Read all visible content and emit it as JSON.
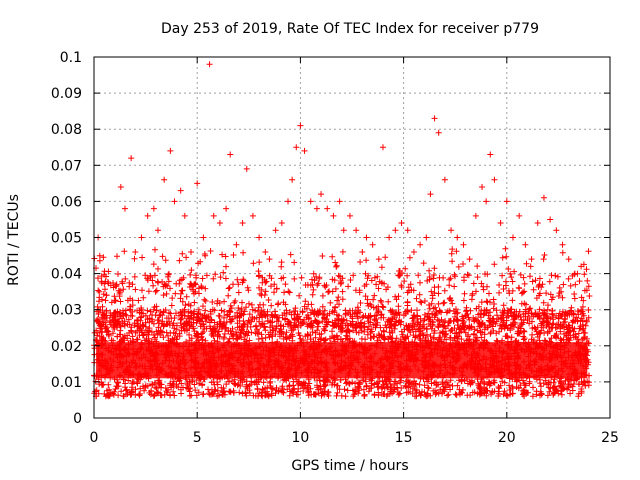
{
  "chart_data": {
    "type": "scatter",
    "title": "Day 253 of 2019, Rate Of TEC Index for receiver p779",
    "xlabel": "GPS time / hours",
    "ylabel": "ROTI / TECUs",
    "xlim": [
      0,
      25
    ],
    "ylim": [
      0,
      0.1
    ],
    "x_ticks": [
      "0",
      "5",
      "10",
      "15",
      "20",
      "25"
    ],
    "y_ticks": [
      "0",
      "0.01",
      "0.02",
      "0.03",
      "0.04",
      "0.05",
      "0.06",
      "0.07",
      "0.08",
      "0.09",
      "0.1"
    ],
    "grid": true,
    "marker": "plus",
    "color": "#ff0000",
    "point_density": "dense band between 0.005 and 0.035 across 0 to 24 hours",
    "series": [
      {
        "x": [
          0.2,
          0.6,
          1.1,
          1.3,
          1.5,
          1.8,
          2.0,
          2.3,
          2.6,
          2.9,
          3.1,
          3.4,
          3.7,
          3.9,
          4.2,
          4.4,
          4.7,
          5.0,
          5.3,
          5.6,
          5.8,
          6.1,
          6.4,
          6.6,
          6.9,
          7.2,
          7.4,
          7.7,
          8.0,
          8.3,
          8.5,
          8.8,
          9.1,
          9.4,
          9.6,
          9.8,
          10.0,
          10.2,
          10.5,
          10.8,
          11.0,
          11.3,
          11.6,
          11.9,
          12.1,
          12.4,
          12.7,
          13.0,
          13.2,
          13.5,
          13.8,
          14.0,
          14.3,
          14.6,
          14.9,
          15.2,
          15.5,
          15.8,
          16.1,
          16.3,
          16.5,
          16.7,
          17.0,
          17.3,
          17.6,
          17.9,
          18.2,
          18.5,
          18.8,
          19.0,
          19.2,
          19.4,
          19.7,
          20.0,
          20.3,
          20.6,
          20.9,
          21.2,
          21.5,
          21.8,
          22.1,
          22.4,
          22.7,
          23.0,
          23.3,
          23.6,
          23.9
        ],
        "y": [
          0.05,
          0.034,
          0.037,
          0.064,
          0.058,
          0.072,
          0.046,
          0.05,
          0.056,
          0.058,
          0.052,
          0.066,
          0.074,
          0.06,
          0.063,
          0.056,
          0.046,
          0.065,
          0.05,
          0.098,
          0.056,
          0.054,
          0.058,
          0.073,
          0.048,
          0.054,
          0.069,
          0.056,
          0.05,
          0.046,
          0.044,
          0.052,
          0.054,
          0.06,
          0.066,
          0.075,
          0.081,
          0.074,
          0.06,
          0.058,
          0.062,
          0.058,
          0.056,
          0.06,
          0.052,
          0.056,
          0.052,
          0.046,
          0.05,
          0.048,
          0.044,
          0.075,
          0.05,
          0.052,
          0.054,
          0.052,
          0.046,
          0.048,
          0.05,
          0.062,
          0.083,
          0.079,
          0.066,
          0.052,
          0.05,
          0.048,
          0.044,
          0.056,
          0.064,
          0.06,
          0.073,
          0.066,
          0.054,
          0.06,
          0.05,
          0.056,
          0.048,
          0.044,
          0.054,
          0.061,
          0.055,
          0.052,
          0.048,
          0.044,
          0.04,
          0.042,
          0.038
        ]
      }
    ]
  }
}
